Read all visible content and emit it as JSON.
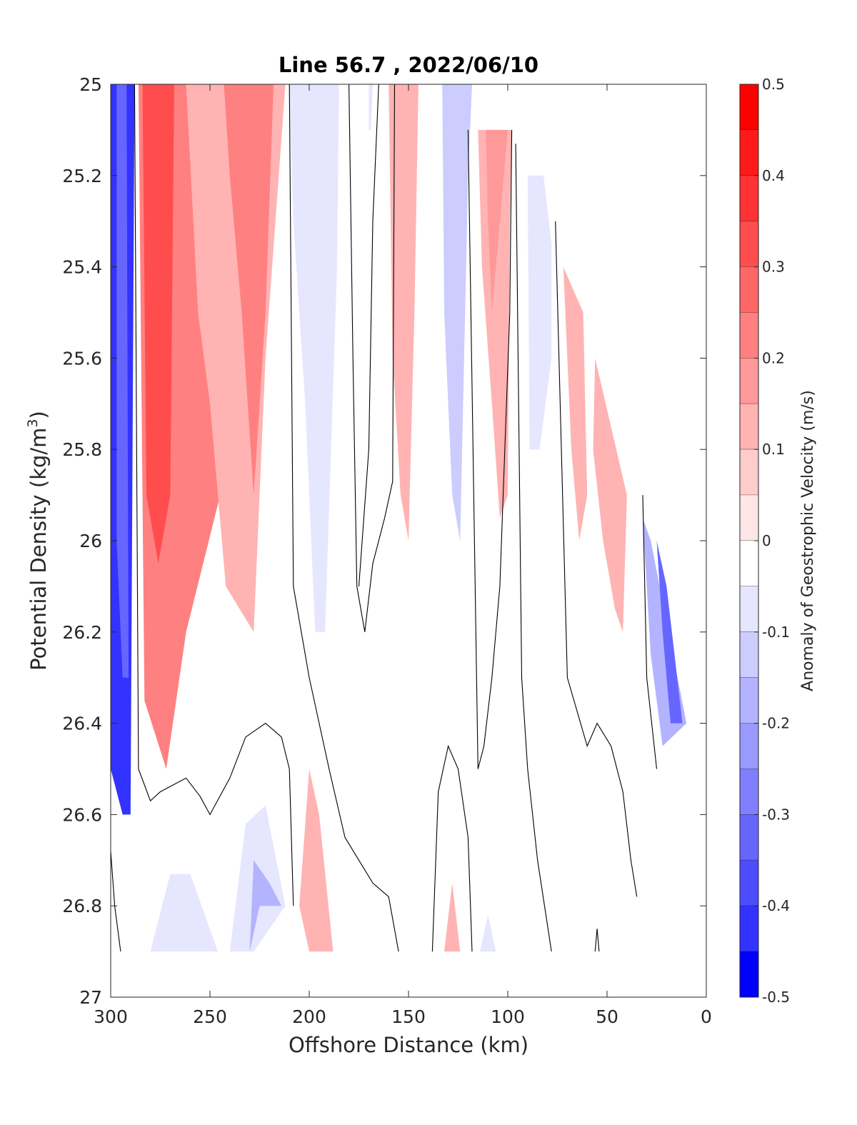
{
  "chart_data": {
    "type": "heatmap",
    "title": "Line 56.7 , 2022/06/10",
    "xlabel": "Offshore Distance (km)",
    "ylabel": "Potential Density (kg/m",
    "ylabel_superscript": "3",
    "ylabel_suffix": ")",
    "colorbar_label": "Anomaly of Geostrophic Velocity (m/s)",
    "xlim": [
      300,
      0
    ],
    "x_reversed": true,
    "ylim": [
      25,
      27
    ],
    "y_reversed": true,
    "xticks": [
      300,
      250,
      200,
      150,
      100,
      50,
      0
    ],
    "yticks": [
      25,
      25.2,
      25.4,
      25.6,
      25.8,
      26,
      26.2,
      26.4,
      26.6,
      26.8,
      27
    ],
    "xtick_labels": [
      "300",
      "250",
      "200",
      "150",
      "100",
      "50",
      "0"
    ],
    "ytick_labels": [
      "25",
      "25.2",
      "25.4",
      "25.6",
      "25.8",
      "26",
      "26.2",
      "26.4",
      "26.6",
      "26.8",
      "27"
    ],
    "colorbar": {
      "limits": [
        -0.5,
        0.5
      ],
      "tick_values": [
        0.5,
        0.4,
        0.3,
        0.2,
        0.1,
        0,
        -0.1,
        -0.2,
        -0.3,
        -0.4,
        -0.5
      ],
      "tick_labels": [
        "0.5",
        "0.4",
        "0.3",
        "0.2",
        "0.1",
        "0",
        "-0.1",
        "-0.2",
        "-0.3",
        "-0.4",
        "-0.5"
      ],
      "levels": [
        {
          "lo": 0.45,
          "hi": 0.5,
          "color": "#ff0000"
        },
        {
          "lo": 0.4,
          "hi": 0.45,
          "color": "#ff1a1a"
        },
        {
          "lo": 0.35,
          "hi": 0.4,
          "color": "#ff3333"
        },
        {
          "lo": 0.3,
          "hi": 0.35,
          "color": "#ff4d4d"
        },
        {
          "lo": 0.25,
          "hi": 0.3,
          "color": "#ff6666"
        },
        {
          "lo": 0.2,
          "hi": 0.25,
          "color": "#ff8080"
        },
        {
          "lo": 0.15,
          "hi": 0.2,
          "color": "#ff9999"
        },
        {
          "lo": 0.1,
          "hi": 0.15,
          "color": "#ffb3b3"
        },
        {
          "lo": 0.05,
          "hi": 0.1,
          "color": "#ffcccc"
        },
        {
          "lo": 0.0,
          "hi": 0.05,
          "color": "#ffe6e6"
        },
        {
          "lo": -0.05,
          "hi": 0.0,
          "color": "#ffffff"
        },
        {
          "lo": -0.1,
          "hi": -0.05,
          "color": "#e6e6ff"
        },
        {
          "lo": -0.15,
          "hi": -0.1,
          "color": "#ccccff"
        },
        {
          "lo": -0.2,
          "hi": -0.15,
          "color": "#b3b3ff"
        },
        {
          "lo": -0.25,
          "hi": -0.2,
          "color": "#9999ff"
        },
        {
          "lo": -0.3,
          "hi": -0.25,
          "color": "#8080ff"
        },
        {
          "lo": -0.35,
          "hi": -0.3,
          "color": "#6666ff"
        },
        {
          "lo": -0.4,
          "hi": -0.35,
          "color": "#4d4dff"
        },
        {
          "lo": -0.45,
          "hi": -0.4,
          "color": "#3333ff"
        },
        {
          "lo": -0.5,
          "hi": -0.45,
          "color": "#0000ff"
        }
      ]
    },
    "filled_regions": [
      {
        "value": -0.45,
        "points": [
          [
            300,
            25
          ],
          [
            288,
            25
          ],
          [
            290,
            26.6
          ],
          [
            294,
            26.6
          ],
          [
            300,
            26.5
          ]
        ]
      },
      {
        "value": -0.35,
        "points": [
          [
            297,
            25
          ],
          [
            292,
            25
          ],
          [
            291,
            26.3
          ],
          [
            294,
            26.3
          ],
          [
            297,
            26.0
          ]
        ]
      },
      {
        "value": 0.2,
        "points": [
          [
            286,
            25
          ],
          [
            230,
            25
          ],
          [
            242,
            25.85
          ],
          [
            262,
            26.2
          ],
          [
            272,
            26.5
          ],
          [
            283,
            26.35
          ]
        ]
      },
      {
        "value": 0.3,
        "points": [
          [
            284,
            25
          ],
          [
            268,
            25
          ],
          [
            270,
            25.9
          ],
          [
            276,
            26.05
          ],
          [
            282,
            25.9
          ]
        ]
      },
      {
        "value": 0.1,
        "points": [
          [
            262,
            25
          ],
          [
            212,
            25
          ],
          [
            222,
            25.6
          ],
          [
            228,
            26.2
          ],
          [
            242,
            26.1
          ],
          [
            250,
            25.7
          ],
          [
            256,
            25.5
          ]
        ]
      },
      {
        "value": 0.2,
        "points": [
          [
            243,
            25
          ],
          [
            218,
            25
          ],
          [
            222,
            25.5
          ],
          [
            228,
            25.9
          ],
          [
            234,
            25.5
          ],
          [
            240,
            25.2
          ]
        ]
      },
      {
        "value": -0.1,
        "points": [
          [
            210,
            25
          ],
          [
            185,
            25
          ],
          [
            186,
            25.4
          ],
          [
            192,
            26.2
          ],
          [
            197,
            26.2
          ],
          [
            202,
            25.7
          ],
          [
            208,
            25.3
          ]
        ]
      },
      {
        "value": -0.1,
        "points": [
          [
            170,
            25
          ],
          [
            168,
            25
          ],
          [
            169,
            25.1
          ],
          [
            170,
            25.1
          ]
        ]
      },
      {
        "value": 0.1,
        "points": [
          [
            160,
            25
          ],
          [
            145,
            25
          ],
          [
            147,
            25.5
          ],
          [
            150,
            26.0
          ],
          [
            154,
            25.9
          ],
          [
            158,
            25.6
          ]
        ]
      },
      {
        "value": -0.15,
        "points": [
          [
            133,
            25
          ],
          [
            118,
            25
          ],
          [
            120,
            25.2
          ],
          [
            124,
            26.0
          ],
          [
            128,
            25.9
          ],
          [
            132,
            25.5
          ]
        ]
      },
      {
        "value": 0.1,
        "points": [
          [
            115,
            25.1
          ],
          [
            98,
            25.1
          ],
          [
            99,
            25.3
          ],
          [
            100,
            25.9
          ],
          [
            104,
            25.95
          ],
          [
            108,
            25.7
          ],
          [
            113,
            25.4
          ]
        ]
      },
      {
        "value": 0.15,
        "points": [
          [
            111,
            25.1
          ],
          [
            100,
            25.1
          ],
          [
            104,
            25.3
          ],
          [
            108,
            25.5
          ],
          [
            110,
            25.3
          ]
        ]
      },
      {
        "value": -0.1,
        "points": [
          [
            90,
            25.2
          ],
          [
            82,
            25.2
          ],
          [
            78,
            25.35
          ],
          [
            78,
            25.6
          ],
          [
            84,
            25.8
          ],
          [
            89,
            25.8
          ]
        ]
      },
      {
        "value": 0.1,
        "points": [
          [
            72,
            25.4
          ],
          [
            62,
            25.5
          ],
          [
            60,
            25.9
          ],
          [
            64,
            26.0
          ],
          [
            68,
            25.8
          ]
        ]
      },
      {
        "value": 0.1,
        "points": [
          [
            56,
            25.6
          ],
          [
            40,
            25.9
          ],
          [
            42,
            26.2
          ],
          [
            46,
            26.15
          ],
          [
            52,
            26.0
          ],
          [
            57,
            25.8
          ]
        ]
      },
      {
        "value": -0.2,
        "points": [
          [
            32,
            25.95
          ],
          [
            28,
            26.0
          ],
          [
            10,
            26.4
          ],
          [
            22,
            26.45
          ],
          [
            28,
            26.25
          ]
        ]
      },
      {
        "value": -0.35,
        "points": [
          [
            25,
            26.0
          ],
          [
            20,
            26.1
          ],
          [
            12,
            26.4
          ],
          [
            18,
            26.4
          ],
          [
            22,
            26.2
          ]
        ]
      },
      {
        "value": -0.1,
        "points": [
          [
            280,
            26.9
          ],
          [
            270,
            26.73
          ],
          [
            260,
            26.73
          ],
          [
            246,
            26.9
          ]
        ]
      },
      {
        "value": -0.1,
        "points": [
          [
            240,
            26.9
          ],
          [
            232,
            26.62
          ],
          [
            222,
            26.58
          ],
          [
            212,
            26.8
          ],
          [
            228,
            26.9
          ]
        ]
      },
      {
        "value": -0.2,
        "points": [
          [
            230,
            26.9
          ],
          [
            228,
            26.7
          ],
          [
            220,
            26.75
          ],
          [
            214,
            26.8
          ],
          [
            225,
            26.8
          ]
        ]
      },
      {
        "value": 0.1,
        "points": [
          [
            205,
            26.8
          ],
          [
            200,
            26.5
          ],
          [
            195,
            26.6
          ],
          [
            188,
            26.9
          ],
          [
            200,
            26.9
          ]
        ]
      },
      {
        "value": 0.1,
        "points": [
          [
            132,
            26.9
          ],
          [
            128,
            26.75
          ],
          [
            124,
            26.9
          ]
        ]
      },
      {
        "value": -0.1,
        "points": [
          [
            114,
            26.9
          ],
          [
            110,
            26.82
          ],
          [
            106,
            26.9
          ]
        ]
      }
    ],
    "zero_contours": [
      [
        [
          288,
          25
        ],
        [
          286,
          26.5
        ],
        [
          280,
          26.57
        ],
        [
          275,
          26.55
        ],
        [
          262,
          26.52
        ],
        [
          255,
          26.56
        ],
        [
          250,
          26.6
        ],
        [
          240,
          26.52
        ],
        [
          232,
          26.43
        ],
        [
          222,
          26.4
        ],
        [
          214,
          26.43
        ],
        [
          210,
          26.5
        ],
        [
          208,
          26.8
        ]
      ],
      [
        [
          300,
          26.68
        ],
        [
          298,
          26.8
        ],
        [
          295,
          26.9
        ]
      ],
      [
        [
          210,
          25
        ],
        [
          208,
          26.1
        ],
        [
          200,
          26.3
        ],
        [
          190,
          26.5
        ],
        [
          182,
          26.65
        ],
        [
          175,
          26.7
        ],
        [
          168,
          26.75
        ],
        [
          160,
          26.78
        ],
        [
          155,
          26.9
        ]
      ],
      [
        [
          180,
          25
        ],
        [
          178,
          25.6
        ],
        [
          176,
          26.1
        ],
        [
          172,
          26.2
        ],
        [
          168,
          26.05
        ],
        [
          162,
          25.95
        ],
        [
          158,
          25.87
        ],
        [
          157,
          25
        ],
        [
          165,
          25
        ],
        [
          168,
          25.3
        ],
        [
          170,
          25.8
        ],
        [
          175,
          26.1
        ]
      ],
      [
        [
          138,
          26.9
        ],
        [
          135,
          26.55
        ],
        [
          130,
          26.45
        ],
        [
          125,
          26.5
        ],
        [
          120,
          26.65
        ],
        [
          118,
          26.9
        ]
      ],
      [
        [
          96,
          25.13
        ],
        [
          93,
          26.3
        ],
        [
          90,
          26.5
        ],
        [
          85,
          26.7
        ],
        [
          78,
          26.9
        ]
      ],
      [
        [
          76,
          25.3
        ],
        [
          70,
          26.3
        ],
        [
          60,
          26.45
        ],
        [
          55,
          26.4
        ],
        [
          48,
          26.45
        ],
        [
          42,
          26.55
        ],
        [
          38,
          26.7
        ],
        [
          35,
          26.78
        ]
      ],
      [
        [
          56,
          26.9
        ],
        [
          55,
          26.85
        ],
        [
          54,
          26.9
        ]
      ],
      [
        [
          32,
          25.9
        ],
        [
          30,
          26.3
        ],
        [
          25,
          26.5
        ]
      ],
      [
        [
          120,
          25.1
        ],
        [
          115,
          26.5
        ],
        [
          112,
          26.45
        ],
        [
          108,
          26.3
        ],
        [
          104,
          26.1
        ],
        [
          99,
          25.5
        ],
        [
          98,
          25.1
        ]
      ]
    ]
  }
}
